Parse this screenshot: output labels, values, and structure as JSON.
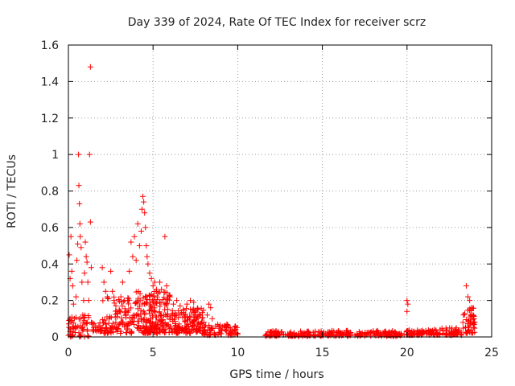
{
  "chart_data": {
    "type": "scatter",
    "title": "Day 339 of 2024, Rate Of TEC Index for receiver scrz",
    "xlabel": "GPS time / hours",
    "ylabel": "ROTI / TECUs",
    "xlim": [
      0,
      25
    ],
    "ylim": [
      0,
      1.6
    ],
    "xticks": [
      "0",
      "5",
      "10",
      "15",
      "20",
      "25"
    ],
    "yticks": [
      "0",
      "0.2",
      "0.4",
      "0.6",
      "0.8",
      "1",
      "1.2",
      "1.4",
      "1.6"
    ],
    "grid": true,
    "marker": "+",
    "color": "#ff0000",
    "series": [
      {
        "name": "ROTI",
        "points": [
          [
            0.05,
            0.45
          ],
          [
            0.1,
            0.32
          ],
          [
            0.15,
            0.55
          ],
          [
            0.2,
            0.36
          ],
          [
            0.25,
            0.28
          ],
          [
            0.3,
            0.18
          ],
          [
            0.35,
            0.1
          ],
          [
            0.4,
            0.06
          ],
          [
            0.45,
            0.22
          ],
          [
            0.5,
            0.42
          ],
          [
            0.55,
            0.51
          ],
          [
            0.6,
            1.0
          ],
          [
            0.62,
            0.83
          ],
          [
            0.65,
            0.73
          ],
          [
            0.68,
            0.62
          ],
          [
            0.7,
            0.55
          ],
          [
            0.75,
            0.49
          ],
          [
            0.8,
            0.3
          ],
          [
            0.85,
            0.12
          ],
          [
            0.9,
            0.2
          ],
          [
            0.95,
            0.35
          ],
          [
            1.0,
            0.52
          ],
          [
            1.05,
            0.44
          ],
          [
            1.1,
            0.41
          ],
          [
            1.15,
            0.3
          ],
          [
            1.2,
            0.2
          ],
          [
            1.25,
            1.0
          ],
          [
            1.3,
            1.48
          ],
          [
            1.3,
            0.63
          ],
          [
            1.35,
            0.38
          ],
          [
            1.4,
            0.07
          ],
          [
            1.5,
            0.05
          ],
          [
            1.6,
            0.06
          ],
          [
            1.7,
            0.04
          ],
          [
            1.8,
            0.06
          ],
          [
            1.9,
            0.05
          ],
          [
            2.0,
            0.38
          ],
          [
            2.1,
            0.3
          ],
          [
            2.2,
            0.25
          ],
          [
            2.3,
            0.22
          ],
          [
            2.4,
            0.1
          ],
          [
            2.5,
            0.36
          ],
          [
            2.6,
            0.25
          ],
          [
            2.7,
            0.2
          ],
          [
            2.8,
            0.08
          ],
          [
            2.9,
            0.04
          ],
          [
            3.0,
            0.15
          ],
          [
            3.1,
            0.22
          ],
          [
            3.2,
            0.3
          ],
          [
            3.3,
            0.2
          ],
          [
            3.4,
            0.14
          ],
          [
            3.5,
            0.2
          ],
          [
            3.6,
            0.36
          ],
          [
            3.7,
            0.52
          ],
          [
            3.8,
            0.44
          ],
          [
            3.9,
            0.55
          ],
          [
            4.0,
            0.42
          ],
          [
            4.1,
            0.62
          ],
          [
            4.2,
            0.5
          ],
          [
            4.3,
            0.58
          ],
          [
            4.35,
            0.7
          ],
          [
            4.4,
            0.77
          ],
          [
            4.45,
            0.74
          ],
          [
            4.5,
            0.68
          ],
          [
            4.55,
            0.6
          ],
          [
            4.6,
            0.5
          ],
          [
            4.65,
            0.44
          ],
          [
            4.7,
            0.4
          ],
          [
            4.8,
            0.35
          ],
          [
            4.9,
            0.32
          ],
          [
            5.0,
            0.28
          ],
          [
            5.1,
            0.3
          ],
          [
            5.2,
            0.26
          ],
          [
            5.3,
            0.24
          ],
          [
            5.4,
            0.3
          ],
          [
            5.5,
            0.26
          ],
          [
            5.7,
            0.55
          ],
          [
            5.8,
            0.28
          ],
          [
            6.0,
            0.22
          ],
          [
            6.2,
            0.18
          ],
          [
            6.4,
            0.2
          ],
          [
            6.6,
            0.17
          ],
          [
            6.8,
            0.15
          ],
          [
            7.0,
            0.18
          ],
          [
            7.2,
            0.2
          ],
          [
            7.4,
            0.19
          ],
          [
            7.5,
            0.14
          ],
          [
            7.6,
            0.1
          ],
          [
            7.8,
            0.12
          ],
          [
            8.0,
            0.08
          ],
          [
            8.2,
            0.12
          ],
          [
            8.3,
            0.18
          ],
          [
            8.4,
            0.16
          ],
          [
            8.5,
            0.1
          ],
          [
            8.7,
            0.06
          ],
          [
            9.0,
            0.04
          ],
          [
            9.3,
            0.05
          ],
          [
            9.6,
            0.03
          ],
          [
            9.8,
            0.04
          ],
          [
            10.0,
            0.02
          ],
          [
            20.0,
            0.2
          ],
          [
            20.0,
            0.14
          ],
          [
            20.05,
            0.18
          ],
          [
            23.5,
            0.28
          ],
          [
            23.6,
            0.22
          ],
          [
            23.7,
            0.2
          ],
          [
            23.8,
            0.16
          ],
          [
            23.9,
            0.12
          ],
          [
            24.0,
            0.08
          ]
        ]
      }
    ]
  }
}
